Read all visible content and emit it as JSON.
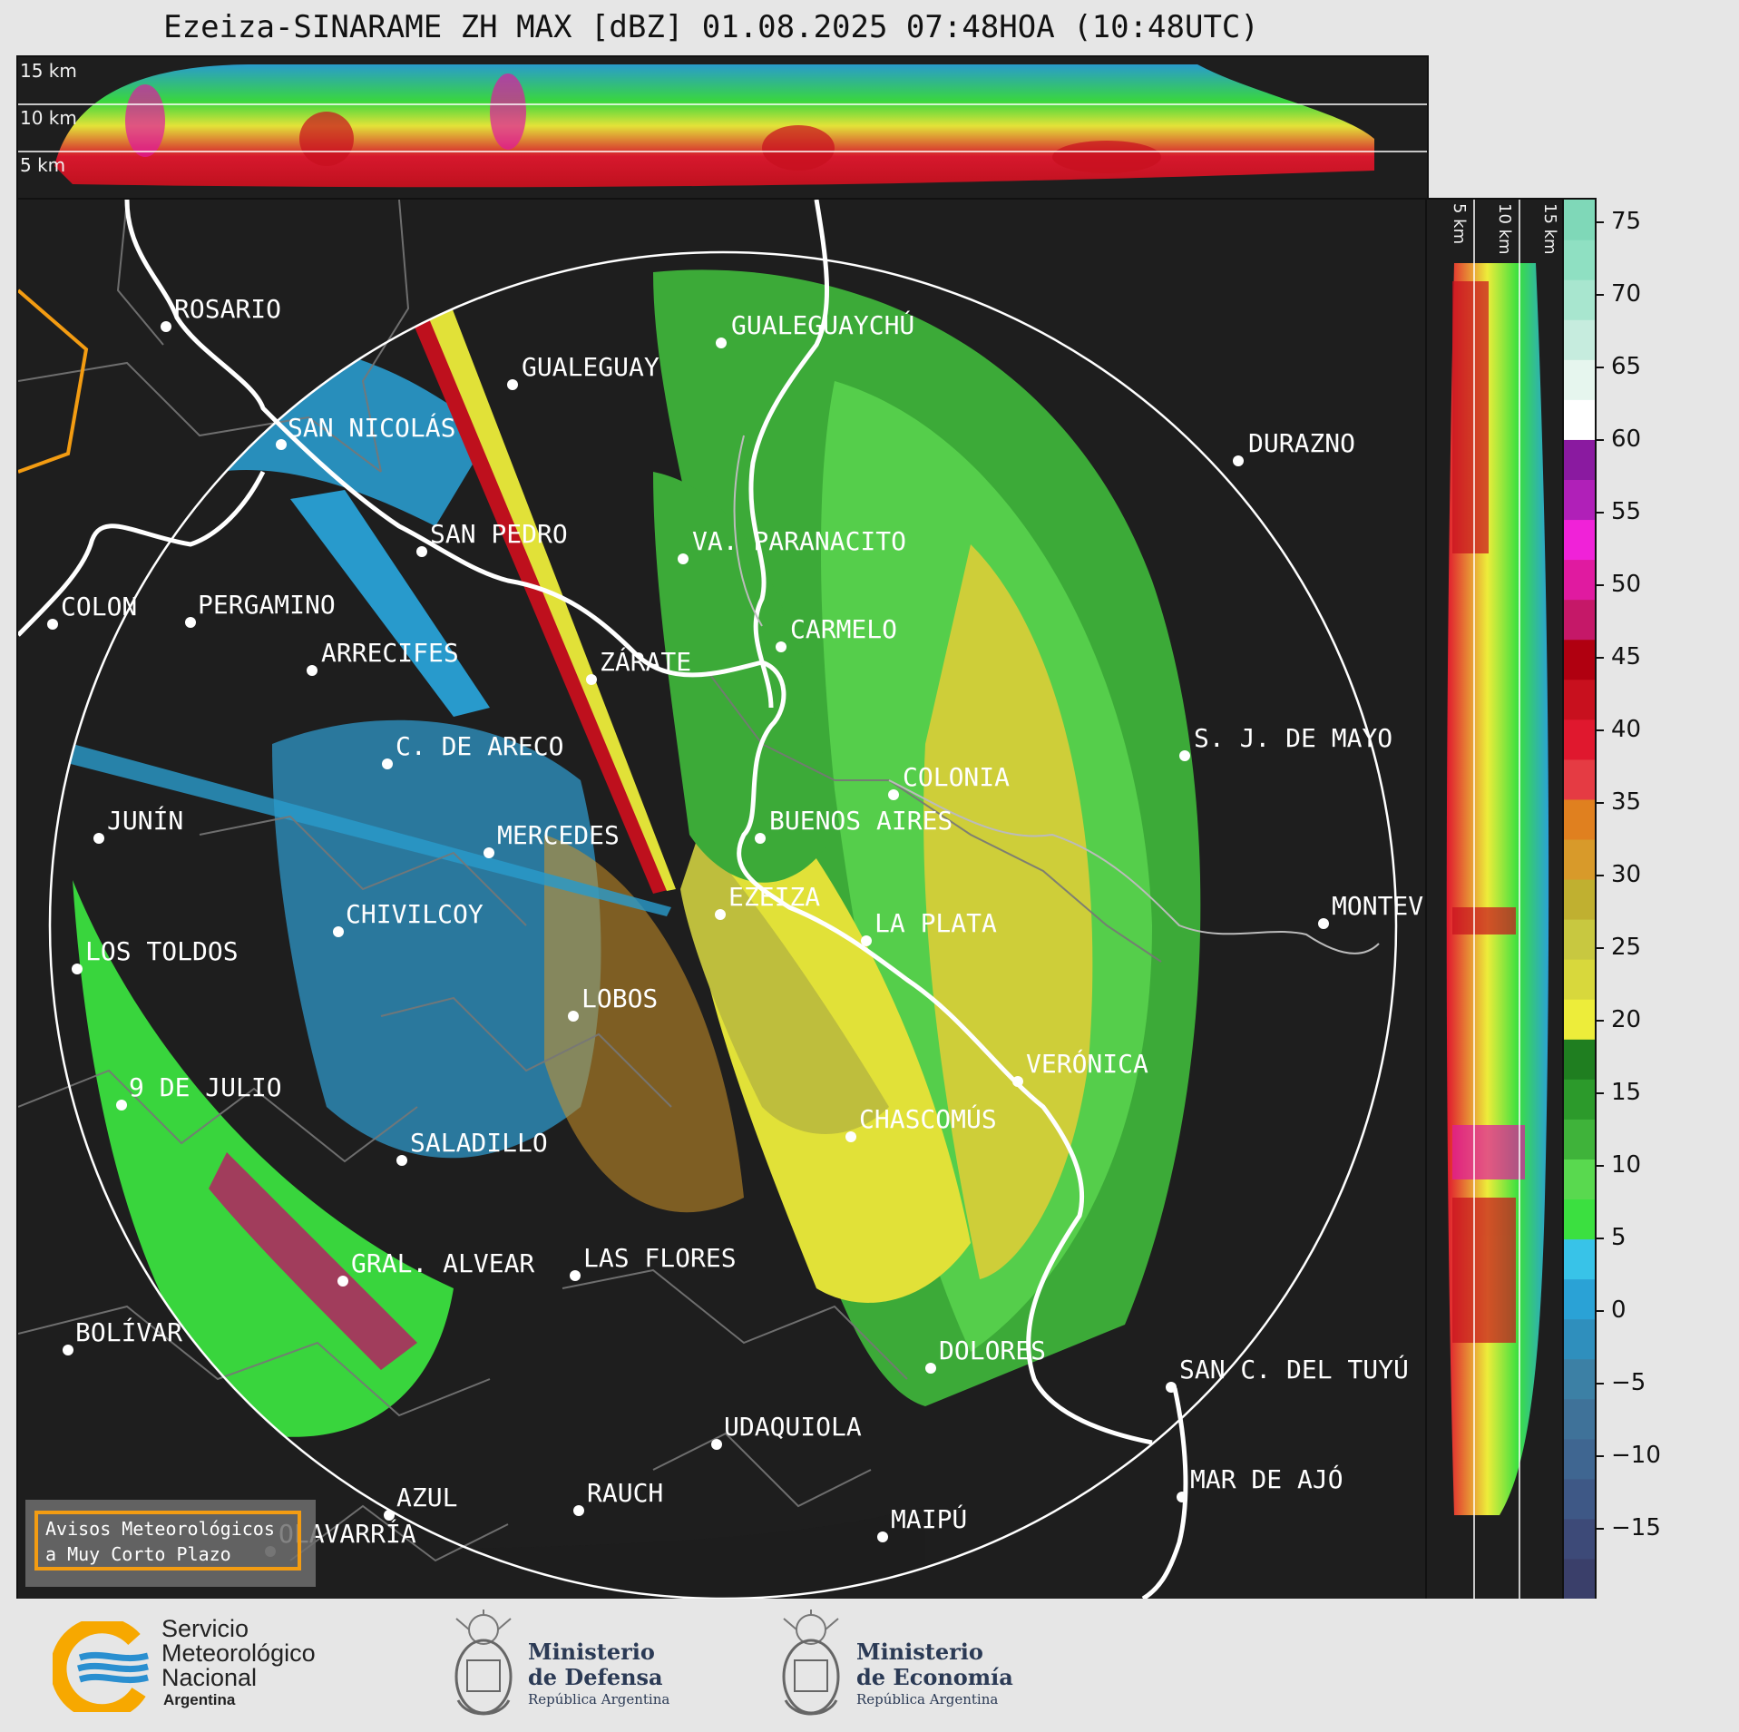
{
  "title": "Ezeiza-SINARAME ZH MAX [dBZ] 01.08.2025 07:48HOA (10:48UTC)",
  "top_panel": {
    "km_labels": [
      "15 km",
      "10 km",
      "5 km"
    ]
  },
  "side_panel": {
    "km_labels": [
      "5 km",
      "10 km",
      "15 km"
    ]
  },
  "colorbar": {
    "unit": "dBZ",
    "ticks": [
      "75",
      "70",
      "65",
      "60",
      "55",
      "50",
      "45",
      "40",
      "35",
      "30",
      "25",
      "20",
      "15",
      "10",
      "5",
      "0",
      "−5",
      "−10",
      "−15"
    ],
    "colors": [
      "#3a3f6a",
      "#3d4a78",
      "#3e5886",
      "#3f6691",
      "#3f7299",
      "#3c80a5",
      "#2f8fbd",
      "#2aa2d6",
      "#38c3e8",
      "#3be040",
      "#59d94f",
      "#3fb33a",
      "#2c9a2b",
      "#1f7e20",
      "#eded3a",
      "#d8d83c",
      "#c8c840",
      "#c0b030",
      "#d89a2a",
      "#e0801f",
      "#e53b43",
      "#e0182e",
      "#c8101e",
      "#b00010",
      "#c51868",
      "#e01aa0",
      "#f022d8",
      "#b020b8",
      "#8a1aa0",
      "#ffffff",
      "#e6f6ee",
      "#c6ecde",
      "#a8e6cf",
      "#8fe0c2",
      "#7fd8b8"
    ]
  },
  "cities": [
    {
      "name": "ROSARIO"
    },
    {
      "name": "GUALEGUAYCHÚ"
    },
    {
      "name": "GUALEGUAY"
    },
    {
      "name": "SAN NICOLÁS"
    },
    {
      "name": "DURAZNO"
    },
    {
      "name": "SAN PEDRO"
    },
    {
      "name": "VA. PARANACITO"
    },
    {
      "name": "COLON"
    },
    {
      "name": "PERGAMINO"
    },
    {
      "name": "CARMELO"
    },
    {
      "name": "ARRECIFES"
    },
    {
      "name": "ZÁRATE"
    },
    {
      "name": "S. J. DE MAYO"
    },
    {
      "name": "C. DE ARECO"
    },
    {
      "name": "COLONIA"
    },
    {
      "name": "JUNÍN"
    },
    {
      "name": "BUENOS AIRES"
    },
    {
      "name": "MERCEDES"
    },
    {
      "name": "MONTEVIDEO"
    },
    {
      "name": "EZEIZA"
    },
    {
      "name": "CHIVILCOY"
    },
    {
      "name": "LA PLATA"
    },
    {
      "name": "LOS TOLDOS"
    },
    {
      "name": "LOBOS"
    },
    {
      "name": "VERÓNICA"
    },
    {
      "name": "9 DE JULIO"
    },
    {
      "name": "CHASCOMÚS"
    },
    {
      "name": "SALADILLO"
    },
    {
      "name": "GRAL. ALVEAR"
    },
    {
      "name": "LAS FLORES"
    },
    {
      "name": "BOLÍVAR"
    },
    {
      "name": "DOLORES"
    },
    {
      "name": "SAN C. DEL TUYÚ"
    },
    {
      "name": "UDAQUIOLA"
    },
    {
      "name": "MAR DE AJÓ"
    },
    {
      "name": "AZUL"
    },
    {
      "name": "RAUCH"
    },
    {
      "name": "OLAVARRÍA"
    },
    {
      "name": "MAIPÚ"
    }
  ],
  "aviso": {
    "line1": "Avisos Meteorológicos",
    "line2": "a Muy Corto Plazo"
  },
  "logos": {
    "smn": {
      "line1": "Servicio",
      "line2": "Meteorológico",
      "line3": "Nacional",
      "line4": "Argentina"
    },
    "defensa": {
      "line1": "Ministerio",
      "line2": "de Defensa",
      "sub": "República Argentina"
    },
    "economia": {
      "line1": "Ministerio",
      "line2": "de Economía",
      "sub": "República Argentina"
    }
  }
}
